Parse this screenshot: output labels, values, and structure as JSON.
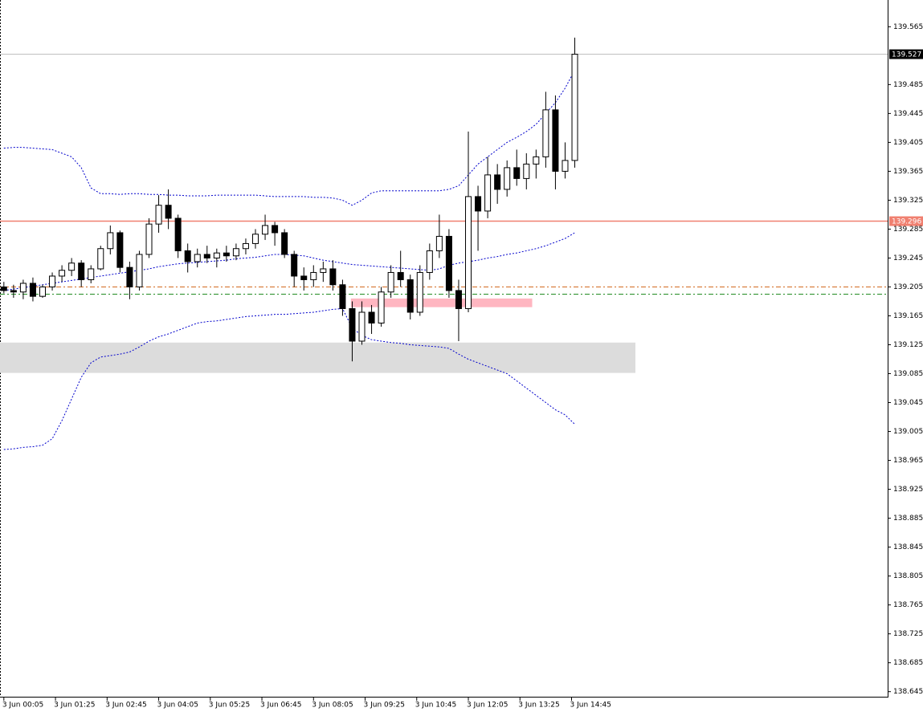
{
  "chart_data": {
    "type": "candlestick",
    "x": [
      5,
      20,
      35,
      50,
      65,
      80,
      95,
      110,
      125,
      140,
      155,
      170,
      185,
      200,
      215,
      230,
      245,
      260,
      275,
      290,
      305,
      320,
      335,
      350,
      365,
      380,
      395,
      410,
      425,
      440,
      455,
      470,
      485,
      500,
      515,
      530,
      545,
      560,
      575,
      590,
      605,
      620,
      635,
      650,
      665,
      680,
      695,
      710,
      725,
      740,
      755,
      770,
      785,
      800,
      815,
      830,
      845,
      860,
      875,
      890
    ],
    "open": [
      139.205,
      139.2,
      139.198,
      139.21,
      139.192,
      139.205,
      139.22,
      139.228,
      139.238,
      139.215,
      139.23,
      139.258,
      139.28,
      139.232,
      139.205,
      139.25,
      139.292,
      139.318,
      139.3,
      139.255,
      139.24,
      139.25,
      139.245,
      139.252,
      139.248,
      139.258,
      139.265,
      139.278,
      139.29,
      139.28,
      139.25,
      139.22,
      139.215,
      139.225,
      139.23,
      139.208,
      139.175,
      139.13,
      139.17,
      139.155,
      139.198,
      139.225,
      139.215,
      139.17,
      139.225,
      139.255,
      139.275,
      139.2,
      139.175,
      139.33,
      139.31,
      139.36,
      139.34,
      139.37,
      139.355,
      139.375,
      139.385,
      139.45,
      139.365,
      139.38
    ],
    "high": [
      139.212,
      139.208,
      139.215,
      139.218,
      139.208,
      139.225,
      139.235,
      139.245,
      139.242,
      139.235,
      139.262,
      139.29,
      139.283,
      139.24,
      139.255,
      139.3,
      139.332,
      139.34,
      139.305,
      139.265,
      139.258,
      139.262,
      139.258,
      139.262,
      139.265,
      139.272,
      139.285,
      139.305,
      139.295,
      139.285,
      139.255,
      139.232,
      139.235,
      139.24,
      139.242,
      139.215,
      139.185,
      139.185,
      139.18,
      139.205,
      139.235,
      139.255,
      139.222,
      139.235,
      139.265,
      139.305,
      139.285,
      139.215,
      139.42,
      139.345,
      139.385,
      139.375,
      139.38,
      139.395,
      139.39,
      139.395,
      139.475,
      139.47,
      139.405,
      139.55
    ],
    "low": [
      139.196,
      139.19,
      139.188,
      139.185,
      139.19,
      139.2,
      139.212,
      139.22,
      139.205,
      139.21,
      139.228,
      139.25,
      139.225,
      139.188,
      139.2,
      139.245,
      139.28,
      139.285,
      139.245,
      139.225,
      139.232,
      139.238,
      139.232,
      139.24,
      139.242,
      139.25,
      139.258,
      139.27,
      139.262,
      139.245,
      139.205,
      139.2,
      139.205,
      139.212,
      139.2,
      139.165,
      139.102,
      139.125,
      139.14,
      139.15,
      139.19,
      139.205,
      139.16,
      139.165,
      139.215,
      139.245,
      139.19,
      139.13,
      139.17,
      139.255,
      139.3,
      139.32,
      139.33,
      139.345,
      139.34,
      139.355,
      139.37,
      139.34,
      139.355,
      139.37
    ],
    "close": [
      139.2,
      139.198,
      139.21,
      139.192,
      139.205,
      139.22,
      139.228,
      139.238,
      139.215,
      139.23,
      139.258,
      139.28,
      139.232,
      139.205,
      139.25,
      139.292,
      139.318,
      139.3,
      139.255,
      139.24,
      139.25,
      139.245,
      139.252,
      139.248,
      139.258,
      139.265,
      139.278,
      139.29,
      139.28,
      139.25,
      139.22,
      139.215,
      139.225,
      139.23,
      139.208,
      139.175,
      139.13,
      139.17,
      139.155,
      139.198,
      139.225,
      139.215,
      139.17,
      139.225,
      139.255,
      139.275,
      139.2,
      139.175,
      139.33,
      139.31,
      139.36,
      139.34,
      139.37,
      139.355,
      139.375,
      139.385,
      139.45,
      139.365,
      139.38,
      139.527
    ],
    "bands": [
      {
        "color": "#0000cc",
        "values": [
          139.397,
          139.398,
          139.398,
          139.397,
          139.396,
          139.395,
          139.39,
          139.385,
          139.37,
          139.342,
          139.334,
          139.334,
          139.333,
          139.334,
          139.334,
          139.333,
          139.333,
          139.332,
          139.332,
          139.331,
          139.331,
          139.331,
          139.332,
          139.332,
          139.332,
          139.332,
          139.332,
          139.331,
          139.33,
          139.33,
          139.33,
          139.33,
          139.329,
          139.329,
          139.328,
          139.325,
          139.318,
          139.325,
          139.335,
          139.338,
          139.338,
          139.338,
          139.338,
          139.338,
          139.338,
          139.338,
          139.34,
          139.345,
          139.36,
          139.375,
          139.385,
          139.395,
          139.405,
          139.412,
          139.42,
          139.43,
          139.445,
          139.46,
          139.48,
          139.505
        ]
      },
      {
        "color": "#0000cc",
        "values": [
          139.2,
          139.202,
          139.204,
          139.206,
          139.208,
          139.21,
          139.212,
          139.214,
          139.216,
          139.218,
          139.22,
          139.222,
          139.224,
          139.226,
          139.228,
          139.23,
          139.233,
          139.235,
          139.237,
          139.238,
          139.239,
          139.24,
          139.241,
          139.242,
          139.244,
          139.245,
          139.246,
          139.248,
          139.25,
          139.25,
          139.249,
          139.248,
          139.245,
          139.242,
          139.24,
          139.238,
          139.236,
          139.235,
          139.234,
          139.233,
          139.232,
          139.231,
          139.23,
          139.229,
          139.228,
          139.23,
          139.235,
          139.238,
          139.24,
          139.242,
          139.245,
          139.247,
          139.25,
          139.252,
          139.255,
          139.258,
          139.262,
          139.267,
          139.272,
          139.28
        ]
      },
      {
        "color": "#0000cc",
        "values": [
          138.98,
          138.981,
          138.983,
          138.984,
          138.986,
          138.995,
          139.02,
          139.05,
          139.08,
          139.1,
          139.108,
          139.11,
          139.112,
          139.115,
          139.122,
          139.13,
          139.136,
          139.14,
          139.145,
          139.15,
          139.155,
          139.157,
          139.158,
          139.16,
          139.162,
          139.164,
          139.165,
          139.166,
          139.167,
          139.167,
          139.168,
          139.169,
          139.17,
          139.172,
          139.174,
          139.175,
          139.148,
          139.138,
          139.132,
          139.13,
          139.128,
          139.127,
          139.125,
          139.124,
          139.123,
          139.122,
          139.12,
          139.112,
          139.105,
          139.1,
          139.095,
          139.09,
          139.085,
          139.075,
          139.065,
          139.055,
          139.045,
          139.035,
          139.028,
          139.015
        ]
      }
    ],
    "zones": [
      {
        "xlim": [
          -1,
          984
        ],
        "ylim": [
          139.086,
          139.128
        ],
        "color": "#dcdcdc"
      },
      {
        "xlim": [
          543,
          824
        ],
        "ylim": [
          139.177,
          139.189
        ],
        "color": "#ffb6c1"
      }
    ],
    "levels": [
      {
        "value": 139.205,
        "color": "#d2691e",
        "style": "dashdot"
      },
      {
        "value": 139.195,
        "color": "#228b22",
        "style": "dashdot"
      },
      {
        "value": 139.296,
        "color": "#f08070",
        "style": "solid",
        "tag": true,
        "tag_color": "#f08070"
      },
      {
        "value": 139.527,
        "color": "#c0c0c0",
        "style": "solid",
        "tag": true,
        "tag_color": "#000000"
      }
    ],
    "xlim": [
      -1,
      1375
    ],
    "ylim": [
      138.638,
      139.602
    ],
    "xticks": [
      {
        "value": 5,
        "label": "3 Jun 00:05"
      },
      {
        "value": 85,
        "label": "3 Jun 01:25"
      },
      {
        "value": 165,
        "label": "3 Jun 02:45"
      },
      {
        "value": 245,
        "label": "3 Jun 04:05"
      },
      {
        "value": 325,
        "label": "3 Jun 05:25"
      },
      {
        "value": 405,
        "label": "3 Jun 06:45"
      },
      {
        "value": 485,
        "label": "3 Jun 08:05"
      },
      {
        "value": 565,
        "label": "3 Jun 09:25"
      },
      {
        "value": 645,
        "label": "3 Jun 10:45"
      },
      {
        "value": 725,
        "label": "3 Jun 12:05"
      },
      {
        "value": 805,
        "label": "3 Jun 13:25"
      },
      {
        "value": 885,
        "label": "3 Jun 14:45"
      }
    ],
    "yticks": [
      139.565,
      139.485,
      139.445,
      139.405,
      139.365,
      139.325,
      139.285,
      139.245,
      139.205,
      139.165,
      139.125,
      139.085,
      139.045,
      139.005,
      138.965,
      138.925,
      138.885,
      138.845,
      138.805,
      138.765,
      138.725,
      138.685,
      138.645
    ]
  }
}
